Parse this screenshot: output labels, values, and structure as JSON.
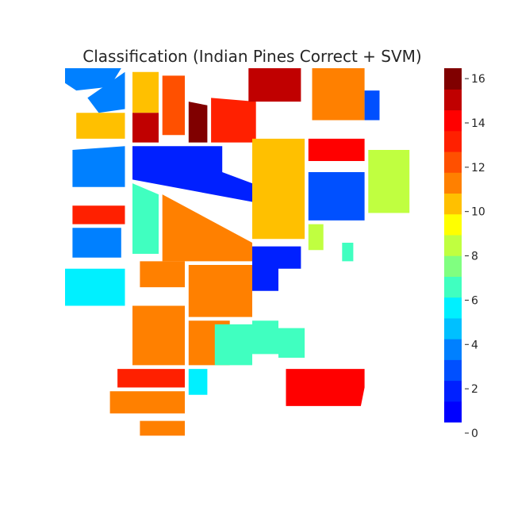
{
  "chart_data": {
    "type": "heatmap",
    "title": "Classification (Indian Pines Correct + SVM)",
    "xlabel": "",
    "ylabel": "",
    "axes_visible": false,
    "colormap": "jet",
    "colorbar": {
      "range": [
        0,
        16
      ],
      "ticks": [
        0,
        2,
        4,
        6,
        8,
        10,
        12,
        14,
        16
      ],
      "tick_labels": [
        "0",
        "2",
        "4",
        "6",
        "8",
        "10",
        "12",
        "14",
        "16"
      ],
      "levels": 17
    },
    "background_class": 0,
    "background_color": "#ffffff",
    "class_colors": [
      "#0000ff",
      "#0020ff",
      "#0050ff",
      "#0080ff",
      "#00c0ff",
      "#00f0ff",
      "#40ffc0",
      "#80ff80",
      "#c0ff40",
      "#ffff00",
      "#ffc000",
      "#ff8000",
      "#ff5000",
      "#ff2000",
      "#ff0000",
      "#c00000",
      "#800000"
    ],
    "regions": [
      {
        "cls": 3,
        "poly": [
          [
            0,
            0
          ],
          [
            75,
            0
          ],
          [
            60,
            25
          ],
          [
            15,
            30
          ],
          [
            0,
            20
          ]
        ]
      },
      {
        "cls": 3,
        "poly": [
          [
            80,
            5
          ],
          [
            80,
            55
          ],
          [
            45,
            60
          ],
          [
            30,
            40
          ]
        ]
      },
      {
        "cls": 10,
        "poly": [
          [
            15,
            60
          ],
          [
            80,
            60
          ],
          [
            80,
            95
          ],
          [
            15,
            95
          ]
        ]
      },
      {
        "cls": 3,
        "poly": [
          [
            10,
            110
          ],
          [
            80,
            105
          ],
          [
            80,
            160
          ],
          [
            10,
            160
          ]
        ]
      },
      {
        "cls": 13,
        "poly": [
          [
            10,
            185
          ],
          [
            80,
            185
          ],
          [
            80,
            210
          ],
          [
            10,
            210
          ]
        ]
      },
      {
        "cls": 3,
        "poly": [
          [
            10,
            215
          ],
          [
            75,
            215
          ],
          [
            75,
            255
          ],
          [
            10,
            255
          ]
        ]
      },
      {
        "cls": 5,
        "poly": [
          [
            0,
            270
          ],
          [
            80,
            270
          ],
          [
            80,
            320
          ],
          [
            0,
            320
          ]
        ]
      },
      {
        "cls": 10,
        "poly": [
          [
            90,
            5
          ],
          [
            125,
            5
          ],
          [
            125,
            60
          ],
          [
            90,
            60
          ]
        ]
      },
      {
        "cls": 15,
        "poly": [
          [
            90,
            60
          ],
          [
            125,
            60
          ],
          [
            125,
            100
          ],
          [
            90,
            100
          ]
        ]
      },
      {
        "cls": 12,
        "poly": [
          [
            130,
            10
          ],
          [
            160,
            10
          ],
          [
            160,
            90
          ],
          [
            130,
            90
          ]
        ]
      },
      {
        "cls": 16,
        "poly": [
          [
            165,
            45
          ],
          [
            190,
            50
          ],
          [
            190,
            100
          ],
          [
            165,
            100
          ]
        ]
      },
      {
        "cls": 13,
        "poly": [
          [
            195,
            40
          ],
          [
            255,
            45
          ],
          [
            255,
            100
          ],
          [
            195,
            100
          ]
        ]
      },
      {
        "cls": 1,
        "poly": [
          [
            90,
            105
          ],
          [
            210,
            105
          ],
          [
            210,
            140
          ],
          [
            250,
            155
          ],
          [
            250,
            180
          ],
          [
            90,
            150
          ]
        ]
      },
      {
        "cls": 6,
        "poly": [
          [
            90,
            155
          ],
          [
            125,
            170
          ],
          [
            125,
            250
          ],
          [
            90,
            250
          ]
        ]
      },
      {
        "cls": 11,
        "poly": [
          [
            130,
            170
          ],
          [
            250,
            235
          ],
          [
            250,
            255
          ],
          [
            250,
            260
          ],
          [
            130,
            260
          ]
        ]
      },
      {
        "cls": 11,
        "poly": [
          [
            100,
            260
          ],
          [
            160,
            260
          ],
          [
            160,
            295
          ],
          [
            100,
            295
          ]
        ]
      },
      {
        "cls": 11,
        "poly": [
          [
            165,
            265
          ],
          [
            250,
            265
          ],
          [
            250,
            335
          ],
          [
            165,
            335
          ]
        ]
      },
      {
        "cls": 11,
        "poly": [
          [
            90,
            320
          ],
          [
            160,
            320
          ],
          [
            160,
            400
          ],
          [
            90,
            400
          ]
        ]
      },
      {
        "cls": 11,
        "poly": [
          [
            165,
            340
          ],
          [
            220,
            340
          ],
          [
            220,
            400
          ],
          [
            165,
            400
          ]
        ]
      },
      {
        "cls": 13,
        "poly": [
          [
            70,
            405
          ],
          [
            160,
            405
          ],
          [
            160,
            430
          ],
          [
            70,
            430
          ]
        ]
      },
      {
        "cls": 5,
        "poly": [
          [
            165,
            405
          ],
          [
            190,
            405
          ],
          [
            190,
            440
          ],
          [
            165,
            440
          ]
        ]
      },
      {
        "cls": 11,
        "poly": [
          [
            60,
            435
          ],
          [
            160,
            435
          ],
          [
            160,
            465
          ],
          [
            60,
            465
          ]
        ]
      },
      {
        "cls": 11,
        "poly": [
          [
            100,
            475
          ],
          [
            160,
            475
          ],
          [
            160,
            495
          ],
          [
            100,
            495
          ]
        ]
      },
      {
        "cls": 15,
        "poly": [
          [
            245,
            0
          ],
          [
            315,
            0
          ],
          [
            315,
            45
          ],
          [
            245,
            45
          ]
        ]
      },
      {
        "cls": 10,
        "poly": [
          [
            250,
            95
          ],
          [
            320,
            95
          ],
          [
            320,
            230
          ],
          [
            250,
            230
          ]
        ]
      },
      {
        "cls": 1,
        "poly": [
          [
            250,
            240
          ],
          [
            315,
            240
          ],
          [
            315,
            270
          ],
          [
            285,
            270
          ],
          [
            285,
            300
          ],
          [
            250,
            300
          ]
        ]
      },
      {
        "cls": 6,
        "poly": [
          [
            200,
            345
          ],
          [
            250,
            345
          ],
          [
            250,
            400
          ],
          [
            200,
            400
          ]
        ]
      },
      {
        "cls": 6,
        "poly": [
          [
            250,
            340
          ],
          [
            285,
            340
          ],
          [
            285,
            385
          ],
          [
            250,
            385
          ]
        ]
      },
      {
        "cls": 6,
        "poly": [
          [
            285,
            350
          ],
          [
            320,
            350
          ],
          [
            320,
            390
          ],
          [
            285,
            390
          ]
        ]
      },
      {
        "cls": 11,
        "poly": [
          [
            330,
            0
          ],
          [
            400,
            0
          ],
          [
            400,
            70
          ],
          [
            330,
            70
          ]
        ]
      },
      {
        "cls": 2,
        "poly": [
          [
            400,
            30
          ],
          [
            420,
            30
          ],
          [
            420,
            70
          ],
          [
            400,
            70
          ]
        ]
      },
      {
        "cls": 14,
        "poly": [
          [
            325,
            95
          ],
          [
            400,
            95
          ],
          [
            400,
            125
          ],
          [
            325,
            125
          ]
        ]
      },
      {
        "cls": 2,
        "poly": [
          [
            325,
            140
          ],
          [
            400,
            140
          ],
          [
            400,
            205
          ],
          [
            325,
            205
          ]
        ]
      },
      {
        "cls": 8,
        "poly": [
          [
            405,
            110
          ],
          [
            460,
            110
          ],
          [
            460,
            195
          ],
          [
            405,
            195
          ]
        ]
      },
      {
        "cls": 8,
        "poly": [
          [
            325,
            210
          ],
          [
            345,
            210
          ],
          [
            345,
            245
          ],
          [
            325,
            245
          ]
        ]
      },
      {
        "cls": 6,
        "poly": [
          [
            370,
            235
          ],
          [
            385,
            235
          ],
          [
            385,
            260
          ],
          [
            370,
            260
          ]
        ]
      },
      {
        "cls": 14,
        "poly": [
          [
            295,
            405
          ],
          [
            400,
            405
          ],
          [
            400,
            430
          ],
          [
            395,
            455
          ],
          [
            295,
            455
          ]
        ]
      }
    ]
  }
}
